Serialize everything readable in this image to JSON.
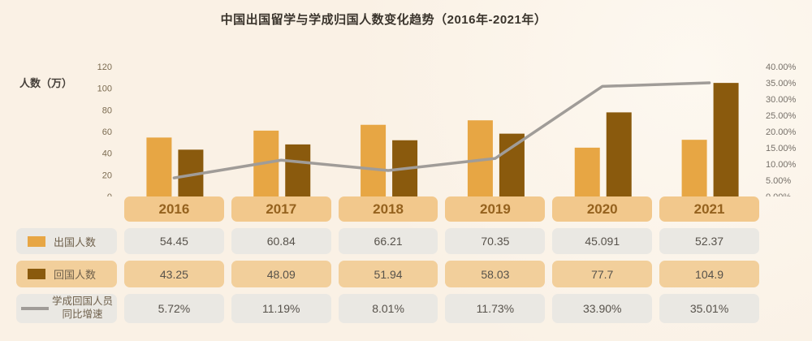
{
  "title": "中国出国留学与学成归国人数变化趋势（2016年-2021年）",
  "colors": {
    "background": "#FAF1E5",
    "bar_out": "#E7A644",
    "bar_return": "#8A5A0D",
    "line": "#A09C98",
    "year_header_bg": "#F2C88C",
    "year_header_text": "#95621E",
    "gray_cell_bg": "#EAE8E3",
    "orange_cell_bg": "#F2CF9B",
    "value_text": "#57524B",
    "left_axis_text": "#7B6B50",
    "right_axis_text": "#767069"
  },
  "chart_data": {
    "type": "bar",
    "title": "中国出国留学与学成归国人数变化趋势（2016年-2021年）",
    "categories": [
      "2016",
      "2017",
      "2018",
      "2019",
      "2020",
      "2021"
    ],
    "series": [
      {
        "name": "出国人数",
        "type": "bar",
        "values": [
          54.45,
          60.84,
          66.21,
          70.35,
          45.091,
          52.37
        ]
      },
      {
        "name": "回国人数",
        "type": "bar",
        "values": [
          43.25,
          48.09,
          51.94,
          58.03,
          77.7,
          104.9
        ]
      },
      {
        "name": "学成回国人员同比增速",
        "type": "line",
        "axis": "right",
        "values_pct": [
          5.72,
          11.19,
          8.01,
          11.73,
          33.9,
          35.01
        ]
      }
    ],
    "left_axis": {
      "label": "人数（万）",
      "ticks": [
        120,
        100,
        80,
        60,
        40,
        20,
        0
      ],
      "range": [
        0,
        120
      ]
    },
    "right_axis": {
      "ticks": [
        "40.00%",
        "35.00%",
        "30.00%",
        "25.00%",
        "20.00%",
        "15.00%",
        "10.00%",
        "5.00%",
        "0.00%"
      ],
      "range": [
        0,
        40
      ]
    },
    "grid": false,
    "legend_position": "left-table"
  },
  "table": {
    "rows": [
      {
        "label": "出国人数",
        "swatch": "bar-out",
        "values": [
          "54.45",
          "60.84",
          "66.21",
          "70.35",
          "45.091",
          "52.37"
        ]
      },
      {
        "label": "回国人数",
        "swatch": "bar-return",
        "values": [
          "43.25",
          "48.09",
          "51.94",
          "58.03",
          "77.7",
          "104.9"
        ]
      },
      {
        "label": "学成回国人员同比增速",
        "label_lines": [
          "学成回国人员",
          "同比增速"
        ],
        "swatch": "line",
        "values": [
          "5.72%",
          "11.19%",
          "8.01%",
          "11.73%",
          "33.90%",
          "35.01%"
        ]
      }
    ]
  }
}
